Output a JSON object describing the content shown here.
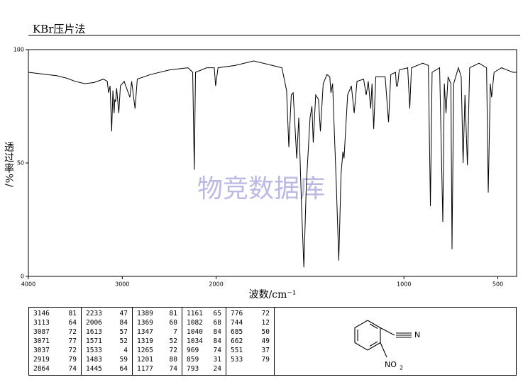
{
  "title": "KBr压片法",
  "watermark": "物竞数据库",
  "chart_data": {
    "type": "line",
    "ylabel": "透过率%/",
    "xlabel": "波数/cm⁻¹",
    "color": "#000000",
    "xlim": [
      4000,
      400
    ],
    "x_scale_break": 2000,
    "x_scale_factor": 2,
    "xticks": [
      4000,
      3000,
      2000,
      1000,
      500
    ],
    "ylim": [
      0,
      100
    ],
    "yticks": [
      0,
      50,
      100
    ],
    "x": [
      4000,
      3900,
      3800,
      3700,
      3600,
      3500,
      3400,
      3300,
      3200,
      3160,
      3146,
      3130,
      3113,
      3100,
      3087,
      3080,
      3071,
      3060,
      3037,
      3020,
      2980,
      2919,
      2900,
      2864,
      2840,
      2700,
      2500,
      2300,
      2250,
      2233,
      2220,
      2100,
      2020,
      2006,
      1990,
      1900,
      1800,
      1700,
      1650,
      1625,
      1613,
      1600,
      1590,
      1571,
      1560,
      1545,
      1533,
      1520,
      1500,
      1490,
      1483,
      1470,
      1455,
      1445,
      1430,
      1410,
      1395,
      1389,
      1380,
      1369,
      1360,
      1347,
      1335,
      1325,
      1319,
      1300,
      1280,
      1265,
      1250,
      1215,
      1201,
      1190,
      1177,
      1170,
      1161,
      1150,
      1100,
      1082,
      1070,
      1045,
      1040,
      1034,
      1025,
      980,
      969,
      960,
      900,
      870,
      859,
      850,
      810,
      793,
      785,
      776,
      765,
      750,
      744,
      735,
      710,
      695,
      685,
      675,
      662,
      650,
      600,
      560,
      551,
      540,
      533,
      520,
      480,
      450,
      420,
      400
    ],
    "values": [
      90,
      89.5,
      89,
      88.5,
      87.5,
      86,
      85,
      85.5,
      87,
      86,
      81,
      84,
      64,
      82,
      72,
      78,
      77,
      83,
      72,
      84,
      86,
      79,
      86,
      74,
      87,
      89,
      91,
      92,
      90,
      47,
      90,
      92,
      92,
      84,
      92,
      93,
      95,
      93,
      92,
      82,
      57,
      80,
      81,
      52,
      70,
      30,
      4,
      40,
      70,
      75,
      59,
      80,
      78,
      64,
      85,
      89,
      88,
      81,
      85,
      60,
      40,
      7,
      45,
      55,
      52,
      80,
      84,
      72,
      86,
      87,
      80,
      86,
      74,
      85,
      65,
      88,
      88,
      68,
      89,
      90,
      84,
      84,
      91,
      92,
      74,
      92,
      94,
      93,
      31,
      90,
      92,
      24,
      85,
      72,
      88,
      85,
      12,
      85,
      92,
      88,
      50,
      80,
      49,
      92,
      94,
      92,
      37,
      85,
      79,
      90,
      92,
      91,
      90,
      90
    ]
  },
  "peak_table": [
    [
      [
        3146,
        81
      ],
      [
        3113,
        64
      ],
      [
        3087,
        72
      ],
      [
        3071,
        77
      ],
      [
        3037,
        72
      ],
      [
        2919,
        79
      ],
      [
        2864,
        74
      ]
    ],
    [
      [
        2233,
        47
      ],
      [
        2006,
        84
      ],
      [
        1613,
        57
      ],
      [
        1571,
        52
      ],
      [
        1533,
        4
      ],
      [
        1483,
        59
      ],
      [
        1445,
        64
      ]
    ],
    [
      [
        1389,
        81
      ],
      [
        1369,
        60
      ],
      [
        1347,
        7
      ],
      [
        1319,
        52
      ],
      [
        1265,
        72
      ],
      [
        1201,
        80
      ],
      [
        1177,
        74
      ]
    ],
    [
      [
        1161,
        65
      ],
      [
        1082,
        68
      ],
      [
        1040,
        84
      ],
      [
        1034,
        84
      ],
      [
        969,
        74
      ],
      [
        859,
        31
      ],
      [
        793,
        24
      ]
    ],
    [
      [
        776,
        72
      ],
      [
        744,
        12
      ],
      [
        685,
        50
      ],
      [
        662,
        49
      ],
      [
        551,
        37
      ],
      [
        533,
        79
      ]
    ]
  ],
  "structure": {
    "nitrile_atom": "N",
    "nitro_group": "NO",
    "nitro_subscript": "2"
  }
}
